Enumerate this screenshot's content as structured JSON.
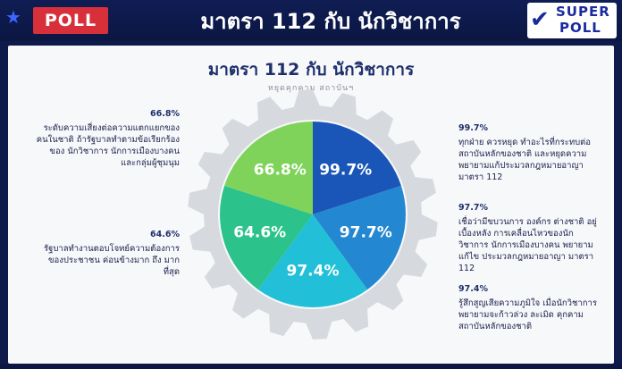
{
  "header": {
    "badge": "POLL",
    "title": "มาตรา 112 กับ นักวิชาการ",
    "logo_line1": "SUPER",
    "logo_line2": "POLL"
  },
  "card": {
    "title": "มาตรา 112 กับ นักวิชาการ",
    "subtitle": "หยุดคุกคาม สถาบันฯ"
  },
  "notes": {
    "left": [
      {
        "pct": "66.8%",
        "text": "ระดับความเสี่ยงต่อความแตกแยกของคนในชาติ ถ้ารัฐบาลทำตามข้อเรียกร้องของ นักวิชาการ นักการเมืองบางคนและกลุ่มผู้ชุมนุม"
      },
      {
        "pct": "64.6%",
        "text": "รัฐบาลทำงานตอบโจทย์ความต้องการของประชาชน ค่อนข้างมาก ถึง มากที่สุด"
      }
    ],
    "right": [
      {
        "pct": "99.7%",
        "text": "ทุกฝ่าย ควรหยุด ทำอะไรที่กระทบต่อสถาบันหลักของชาติ และหยุดความพยายามแก้ประมวลกฎหมายอาญามาตรา 112"
      },
      {
        "pct": "97.7%",
        "text": "เชื่อว่ามีขบวนการ องค์กร ต่างชาติ อยู่เบื้องหลัง การเคลื่อนไหวของนักวิชาการ นักการเมืองบางคน พยายามแก้ไข ประมวลกฎหมายอาญา มาตรา 112"
      },
      {
        "pct": "97.4%",
        "text": "รู้สึกสูญเสียความภูมิใจ เมื่อนักวิชาการ พยายามจะก้าวล่วง ละเมิด คุกคามสถาบันหลักของชาติ"
      }
    ]
  },
  "chart_data": {
    "type": "pie",
    "categories": [
      "99.7%",
      "97.7%",
      "97.4%",
      "64.6%",
      "66.8%"
    ],
    "values": [
      99.7,
      97.7,
      97.4,
      64.6,
      66.8
    ],
    "equal_segments": true,
    "colors": [
      "#1a56b8",
      "#2387d1",
      "#22bfd8",
      "#2bc28c",
      "#7fd35a"
    ],
    "gear_color": "#d6d9de",
    "title": "มาตรา 112 กับ นักวิชาการ",
    "subtitle": "หยุดคุกคาม สถาบันฯ"
  }
}
